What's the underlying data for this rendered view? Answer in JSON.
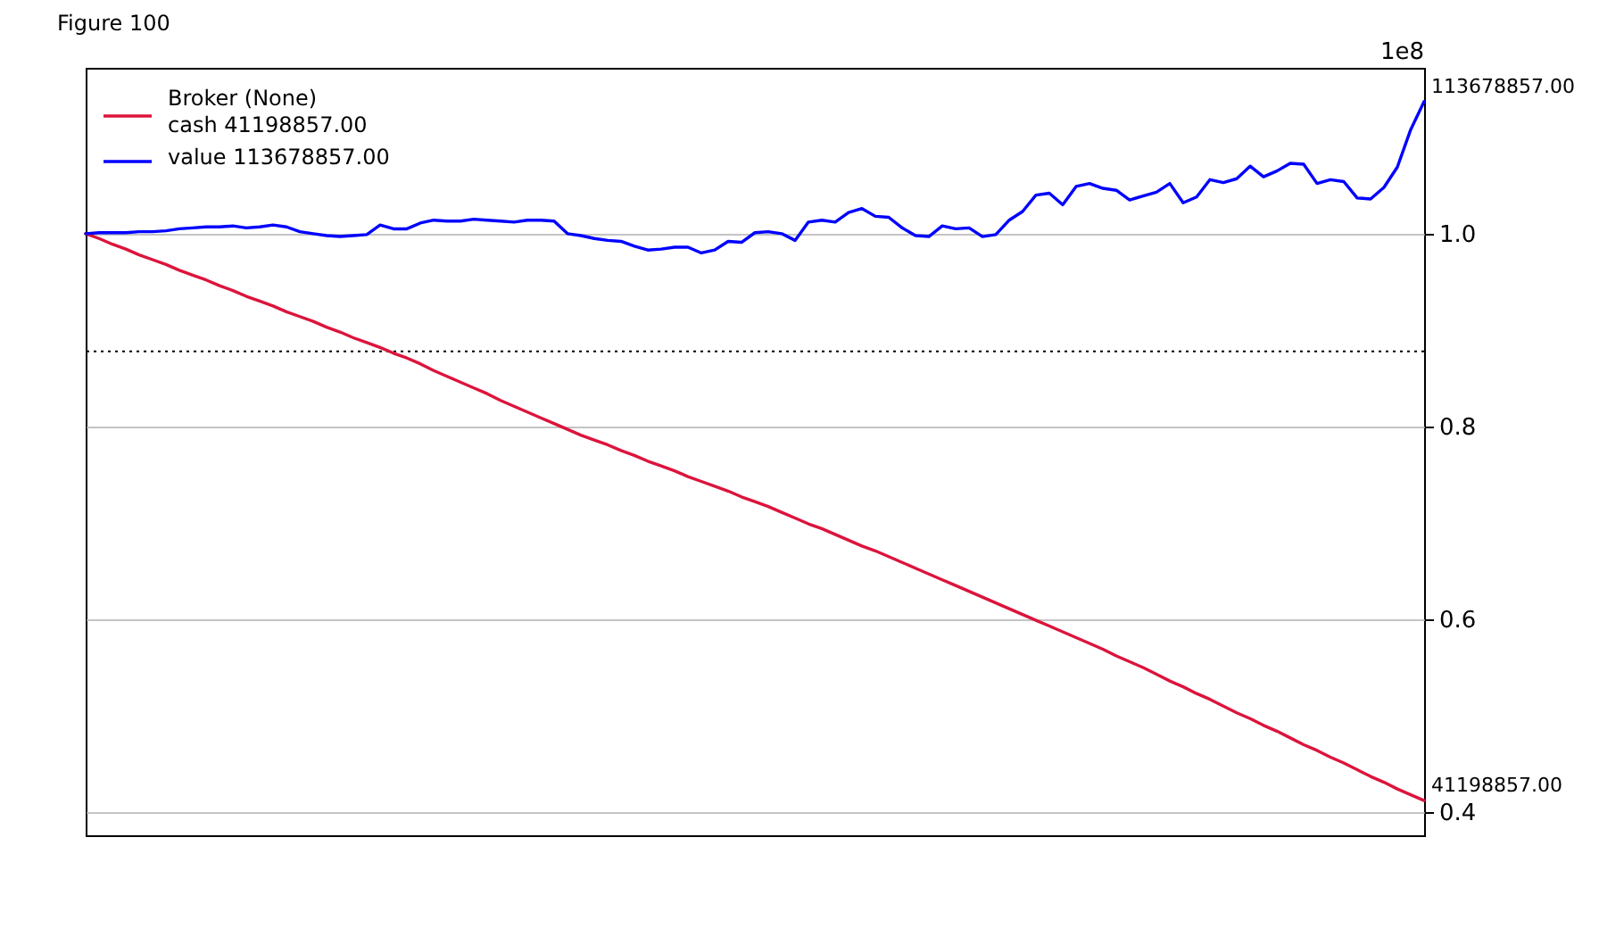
{
  "chart_data": {
    "type": "line",
    "title": "Figure 100",
    "categories": [
      null,
      null,
      null,
      null,
      null,
      null,
      null,
      null,
      null,
      null,
      null,
      null,
      null,
      null,
      null,
      null,
      null,
      null,
      null,
      null,
      null,
      null,
      null,
      null,
      null,
      null,
      null,
      null,
      null,
      null,
      null,
      null,
      null,
      null,
      null,
      null,
      null,
      null,
      null,
      null,
      null,
      null,
      null,
      null,
      null,
      null,
      null,
      null,
      null,
      null,
      null,
      null,
      null,
      null,
      null,
      null,
      null,
      null,
      null,
      null,
      null,
      null,
      null,
      null,
      null,
      null,
      null,
      null,
      null,
      null,
      null,
      null,
      null,
      null,
      null,
      null,
      null,
      null,
      null,
      null,
      null,
      null,
      null,
      null,
      null,
      null,
      null,
      null,
      null,
      null,
      null,
      null,
      null,
      null,
      null,
      null,
      null,
      null,
      null,
      null,
      null
    ],
    "series": [
      {
        "name": "Broker (None)\ncash 41198857.00",
        "color": "#dc143c",
        "values": [
          1.0,
          0.995,
          0.989,
          0.984,
          0.978,
          0.973,
          0.968,
          0.962,
          0.957,
          0.952,
          0.946,
          0.941,
          0.935,
          0.93,
          0.925,
          0.919,
          0.914,
          0.909,
          0.903,
          0.898,
          0.892,
          0.887,
          0.882,
          0.876,
          0.871,
          0.865,
          0.858,
          0.852,
          0.846,
          0.84,
          0.834,
          0.827,
          0.821,
          0.815,
          0.809,
          0.803,
          0.797,
          0.791,
          0.786,
          0.781,
          0.775,
          0.77,
          0.764,
          0.759,
          0.754,
          0.748,
          0.743,
          0.738,
          0.733,
          0.727,
          0.722,
          0.717,
          0.711,
          0.705,
          0.699,
          0.694,
          0.688,
          0.682,
          0.676,
          0.671,
          0.665,
          0.659,
          0.653,
          0.647,
          0.641,
          0.635,
          0.629,
          0.623,
          0.617,
          0.611,
          0.605,
          0.599,
          0.593,
          0.587,
          0.581,
          0.575,
          0.569,
          0.562,
          0.556,
          0.55,
          0.543,
          0.536,
          0.53,
          0.523,
          0.517,
          0.51,
          0.503,
          0.497,
          0.49,
          0.484,
          0.477,
          0.47,
          0.464,
          0.457,
          0.451,
          0.444,
          0.437,
          0.431,
          0.424,
          0.418,
          0.412
        ]
      },
      {
        "name": "value 113678857.00",
        "color": "#0000ff",
        "values": [
          1.0,
          1.001,
          1.001,
          1.001,
          1.002,
          1.002,
          1.003,
          1.005,
          1.006,
          1.007,
          1.007,
          1.008,
          1.006,
          1.007,
          1.009,
          1.007,
          1.002,
          1.0,
          0.998,
          0.997,
          0.998,
          0.999,
          1.009,
          1.005,
          1.005,
          1.011,
          1.014,
          1.013,
          1.013,
          1.015,
          1.014,
          1.013,
          1.012,
          1.014,
          1.014,
          1.013,
          1.0,
          0.998,
          0.995,
          0.993,
          0.992,
          0.987,
          0.983,
          0.984,
          0.986,
          0.986,
          0.98,
          0.983,
          0.992,
          0.991,
          1.001,
          1.002,
          1.0,
          0.993,
          1.012,
          1.014,
          1.012,
          1.022,
          1.026,
          1.018,
          1.017,
          1.006,
          0.998,
          0.997,
          1.008,
          1.005,
          1.006,
          0.997,
          0.999,
          1.014,
          1.023,
          1.04,
          1.042,
          1.03,
          1.049,
          1.052,
          1.047,
          1.045,
          1.035,
          1.039,
          1.043,
          1.052,
          1.032,
          1.038,
          1.056,
          1.053,
          1.057,
          1.07,
          1.059,
          1.065,
          1.073,
          1.072,
          1.052,
          1.056,
          1.054,
          1.037,
          1.036,
          1.048,
          1.069,
          1.108,
          1.137
        ]
      }
    ],
    "ylim": [
      0.376,
      1.172
    ],
    "yticks": [
      0.4,
      0.6,
      0.8,
      {
        "value": 1.0,
        "label": "1.0"
      }
    ],
    "ref_lines": [
      {
        "axis": "y",
        "value": 0.878,
        "color": "#000000",
        "line_style": "dotted"
      }
    ],
    "annotations": [
      "1e8",
      "41198857.00",
      "113678857.00"
    ],
    "grid": "y",
    "legend": "top left",
    "tick_labels": "y"
  }
}
